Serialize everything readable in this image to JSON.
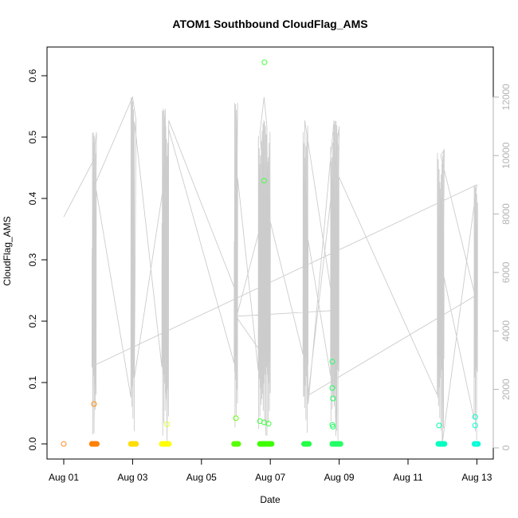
{
  "chart_data": {
    "type": "scatter",
    "title": "ATOM1 Southbound CloudFlag_AMS",
    "xlabel": "Date",
    "ylabel": "CloudFlag_AMS",
    "x_range_days": [
      0,
      12.25
    ],
    "x_ticks": [
      {
        "day": 0,
        "label": "Aug 01"
      },
      {
        "day": 2,
        "label": "Aug 03"
      },
      {
        "day": 4,
        "label": "Aug 05"
      },
      {
        "day": 6,
        "label": "Aug 07"
      },
      {
        "day": 8,
        "label": "Aug 09"
      },
      {
        "day": 10,
        "label": "Aug 11"
      },
      {
        "day": 12,
        "label": "Aug 13"
      }
    ],
    "ylim": [
      -0.02,
      0.646
    ],
    "y_ticks": [
      "0.0",
      "0.1",
      "0.2",
      "0.3",
      "0.4",
      "0.5",
      "0.6"
    ],
    "right_axis": {
      "ylim": [
        -500,
        12800
      ],
      "ticks": [
        "0",
        "2000",
        "4000",
        "6000",
        "8000",
        "10000",
        "12000"
      ],
      "color": "#b3b3b3"
    },
    "series": [
      {
        "color_note": "points colored by date (orange to cyan)",
        "points": [
          {
            "day": 0.0,
            "y": 0.0,
            "color": "#ff8c28"
          },
          {
            "day": 0.88,
            "y": 0.065,
            "color": "#ff8c00"
          },
          {
            "day": 0.82,
            "y": 0.0,
            "color": "#ff8000"
          },
          {
            "day": 0.86,
            "y": 0.0,
            "color": "#ff8000"
          },
          {
            "day": 0.9,
            "y": 0.0,
            "color": "#ff8000"
          },
          {
            "day": 0.94,
            "y": 0.0,
            "color": "#ff8000"
          },
          {
            "day": 2.0,
            "y": 0.0,
            "color": "#ffd000"
          },
          {
            "day": 2.05,
            "y": 0.0,
            "color": "#ffd800"
          },
          {
            "day": 2.1,
            "y": 0.0,
            "color": "#ffdc00"
          },
          {
            "day": 2.85,
            "y": 0.0,
            "color": "#ffff00"
          },
          {
            "day": 2.9,
            "y": 0.0,
            "color": "#ffff00"
          },
          {
            "day": 2.95,
            "y": 0.0,
            "color": "#ffff00"
          },
          {
            "day": 3.0,
            "y": 0.0,
            "color": "#ffff00"
          },
          {
            "day": 3.05,
            "y": 0.0,
            "color": "#ffff00"
          },
          {
            "day": 3.0,
            "y": 0.032,
            "color": "#e0ff30"
          },
          {
            "day": 5.0,
            "y": 0.042,
            "color": "#60ff00"
          },
          {
            "day": 4.95,
            "y": 0.0,
            "color": "#60ff00"
          },
          {
            "day": 5.05,
            "y": 0.0,
            "color": "#60ff00"
          },
          {
            "day": 5.7,
            "y": 0.037,
            "color": "#40ff40"
          },
          {
            "day": 5.82,
            "y": 0.035,
            "color": "#40ff40"
          },
          {
            "day": 5.95,
            "y": 0.033,
            "color": "#40ff40"
          },
          {
            "day": 5.83,
            "y": 0.622,
            "color": "#40ff40"
          },
          {
            "day": 5.82,
            "y": 0.429,
            "color": "#40ff40"
          },
          {
            "day": 5.7,
            "y": 0.0,
            "color": "#40ff00"
          },
          {
            "day": 5.75,
            "y": 0.0,
            "color": "#40ff00"
          },
          {
            "day": 5.8,
            "y": 0.0,
            "color": "#40ff00"
          },
          {
            "day": 5.85,
            "y": 0.0,
            "color": "#40ff00"
          },
          {
            "day": 5.9,
            "y": 0.0,
            "color": "#40ff00"
          },
          {
            "day": 5.95,
            "y": 0.0,
            "color": "#40ff00"
          },
          {
            "day": 6.0,
            "y": 0.0,
            "color": "#40ff00"
          },
          {
            "day": 7.0,
            "y": 0.0,
            "color": "#20ff40"
          },
          {
            "day": 7.05,
            "y": 0.0,
            "color": "#20ff40"
          },
          {
            "day": 7.1,
            "y": 0.0,
            "color": "#20ff40"
          },
          {
            "day": 7.8,
            "y": 0.134,
            "color": "#20ff60"
          },
          {
            "day": 7.8,
            "y": 0.091,
            "color": "#20ff60"
          },
          {
            "day": 7.82,
            "y": 0.074,
            "color": "#20ff60"
          },
          {
            "day": 7.8,
            "y": 0.031,
            "color": "#20ff60"
          },
          {
            "day": 7.82,
            "y": 0.028,
            "color": "#20ff60"
          },
          {
            "day": 7.8,
            "y": 0.0,
            "color": "#20ff60"
          },
          {
            "day": 7.85,
            "y": 0.0,
            "color": "#20ff60"
          },
          {
            "day": 7.9,
            "y": 0.0,
            "color": "#20ff60"
          },
          {
            "day": 7.95,
            "y": 0.0,
            "color": "#20ff60"
          },
          {
            "day": 8.0,
            "y": 0.0,
            "color": "#20ff60"
          },
          {
            "day": 10.9,
            "y": 0.03,
            "color": "#00ffb0"
          },
          {
            "day": 10.9,
            "y": 0.0,
            "color": "#00ffc0"
          },
          {
            "day": 10.95,
            "y": 0.0,
            "color": "#00ffc0"
          },
          {
            "day": 11.0,
            "y": 0.0,
            "color": "#00ffc0"
          },
          {
            "day": 11.05,
            "y": 0.0,
            "color": "#00ffc0"
          },
          {
            "day": 11.95,
            "y": 0.044,
            "color": "#00ffd0"
          },
          {
            "day": 11.95,
            "y": 0.03,
            "color": "#00ffd0"
          },
          {
            "day": 11.95,
            "y": 0.0,
            "color": "#00ffd8"
          },
          {
            "day": 12.0,
            "y": 0.0,
            "color": "#00ffd8"
          }
        ]
      },
      {
        "name_axis": "right",
        "color": "#cccccc",
        "line": [
          [
            0.0,
            7900
          ],
          [
            0.85,
            9800
          ],
          [
            0.95,
            10800
          ],
          [
            0.88,
            500
          ],
          [
            0.9,
            9000
          ],
          [
            2.0,
            12000
          ],
          [
            2.1,
            11200
          ],
          [
            2.05,
            2400
          ],
          [
            2.9,
            9000
          ],
          [
            2.95,
            11600
          ],
          [
            3.0,
            200
          ],
          [
            3.05,
            11200
          ],
          [
            4.95,
            5500
          ],
          [
            5.05,
            11800
          ],
          [
            5.0,
            4400
          ],
          [
            5.85,
            8200
          ],
          [
            5.7,
            10800
          ],
          [
            5.82,
            12000
          ],
          [
            5.9,
            11000
          ],
          [
            5.95,
            2900
          ],
          [
            5.0,
            4500
          ],
          [
            7.85,
            4700
          ],
          [
            7.0,
            11200
          ],
          [
            7.1,
            1500
          ],
          [
            7.85,
            11200
          ],
          [
            7.9,
            400
          ],
          [
            8.0,
            11000
          ],
          [
            7.1,
            1800
          ],
          [
            11.95,
            5200
          ],
          [
            10.95,
            10000
          ],
          [
            11.05,
            10200
          ],
          [
            11.0,
            200
          ],
          [
            12.0,
            9000
          ]
        ]
      }
    ]
  }
}
